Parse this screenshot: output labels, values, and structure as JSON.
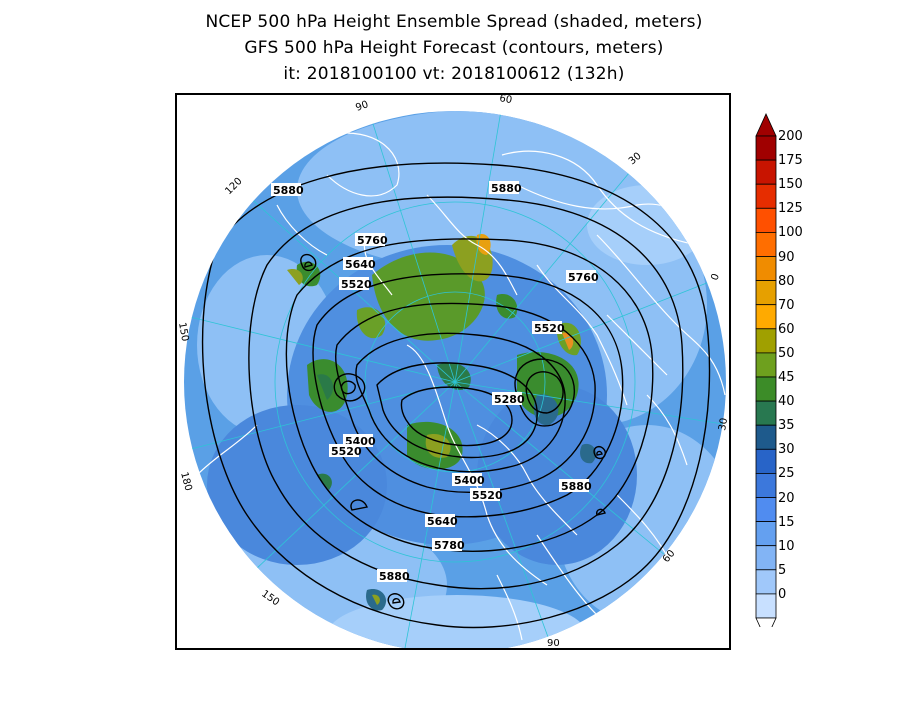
{
  "header": {
    "title_line1": "NCEP 500 hPa Height Ensemble Spread (shaded, meters)",
    "title_line2": "GFS 500 hPa Height Forecast (contours, meters)",
    "title_line3": "it: 2018100100      vt: 2018100612 (132h)"
  },
  "map": {
    "projection": "north-polar-stereographic",
    "longitude_labels": [
      "60",
      "30",
      "0",
      "30",
      "60",
      "90",
      "120",
      "150",
      "180",
      "150",
      "120",
      "90"
    ],
    "contour_labels": [
      "5880",
      "5880",
      "5760",
      "5640",
      "5520",
      "5760",
      "5520",
      "5280",
      "5400",
      "5520",
      "5400",
      "5520",
      "5880",
      "5640",
      "5780",
      "5880"
    ],
    "colors": {
      "contour": "#000000",
      "coastline": "#ffffff",
      "graticule": "#2ec4d6"
    }
  },
  "colorbar": {
    "labels": [
      "200",
      "175",
      "150",
      "125",
      "100",
      "90",
      "80",
      "70",
      "60",
      "50",
      "45",
      "40",
      "35",
      "30",
      "25",
      "20",
      "15",
      "10",
      "5",
      "0"
    ],
    "colors": [
      "#a00000",
      "#c81400",
      "#e62d00",
      "#ff5000",
      "#ff6e00",
      "#f08c00",
      "#e6a000",
      "#ffaa00",
      "#a0a000",
      "#6ea01e",
      "#3c8c28",
      "#287850",
      "#1e5a8c",
      "#2864c8",
      "#3c78dc",
      "#508cf0",
      "#64a0f0",
      "#82b4f5",
      "#a0c8fa",
      "#c8e0ff"
    ]
  }
}
